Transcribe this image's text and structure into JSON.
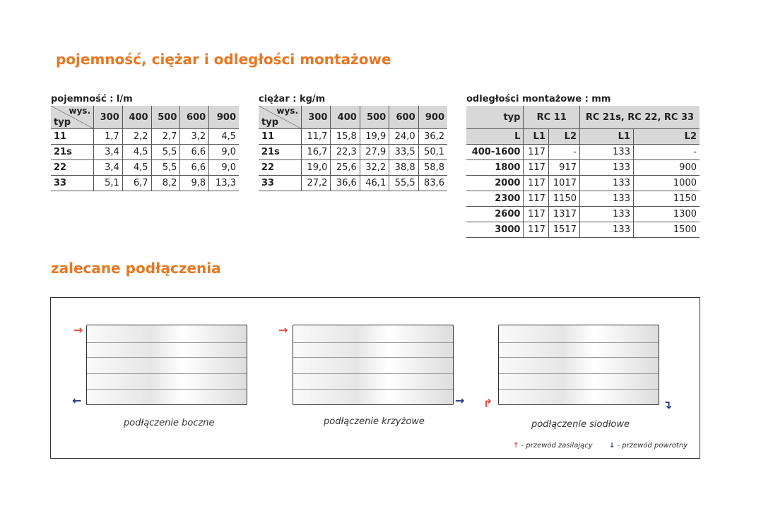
{
  "title": "pojemność, ciężar i odległości montażowe",
  "capacity": {
    "caption": "pojemność : l/m",
    "corner_top": "wys.",
    "corner_bottom": "typ",
    "columns": [
      "300",
      "400",
      "500",
      "600",
      "900"
    ],
    "rows": [
      [
        "11",
        "1,7",
        "2,2",
        "2,7",
        "3,2",
        "4,5"
      ],
      [
        "21s",
        "3,4",
        "4,5",
        "5,5",
        "6,6",
        "9,0"
      ],
      [
        "22",
        "3,4",
        "4,5",
        "5,5",
        "6,6",
        "9,0"
      ],
      [
        "33",
        "5,1",
        "6,7",
        "8,2",
        "9,8",
        "13,3"
      ]
    ]
  },
  "weight": {
    "caption": "ciężar : kg/m",
    "corner_top": "wys.",
    "corner_bottom": "typ",
    "columns": [
      "300",
      "400",
      "500",
      "600",
      "900"
    ],
    "rows": [
      [
        "11",
        "11,7",
        "15,8",
        "19,9",
        "24,0",
        "36,2"
      ],
      [
        "21s",
        "16,7",
        "22,3",
        "27,9",
        "33,5",
        "50,1"
      ],
      [
        "22",
        "19,0",
        "25,6",
        "32,2",
        "38,8",
        "58,8"
      ],
      [
        "33",
        "27,2",
        "36,6",
        "46,1",
        "55,5",
        "83,6"
      ]
    ]
  },
  "mounting": {
    "caption": "odległości montażowe : mm",
    "head1": [
      "typ",
      "RC 11",
      "RC 21s, RC 22, RC 33"
    ],
    "head2": [
      "L",
      "L1",
      "L2",
      "L1",
      "L2"
    ],
    "rows": [
      [
        "400-1600",
        "117",
        "-",
        "133",
        "-"
      ],
      [
        "1800",
        "117",
        "917",
        "133",
        "900"
      ],
      [
        "2000",
        "117",
        "1017",
        "133",
        "1000"
      ],
      [
        "2300",
        "117",
        "1150",
        "133",
        "1150"
      ],
      [
        "2600",
        "117",
        "1317",
        "133",
        "1300"
      ],
      [
        "3000",
        "117",
        "1517",
        "133",
        "1500"
      ]
    ]
  },
  "connections": {
    "title": "zalecane podłączenia",
    "side": "podłączenie boczne",
    "cross": "podłączenie krzyżowe",
    "saddle": "podłączenie siodłowe",
    "legend_supply": "- przewód zasilający",
    "legend_return": "- przewód powrotny"
  },
  "colors": {
    "accent": "#e87722",
    "supply": "#e8473a",
    "return": "#2b3a8c"
  }
}
